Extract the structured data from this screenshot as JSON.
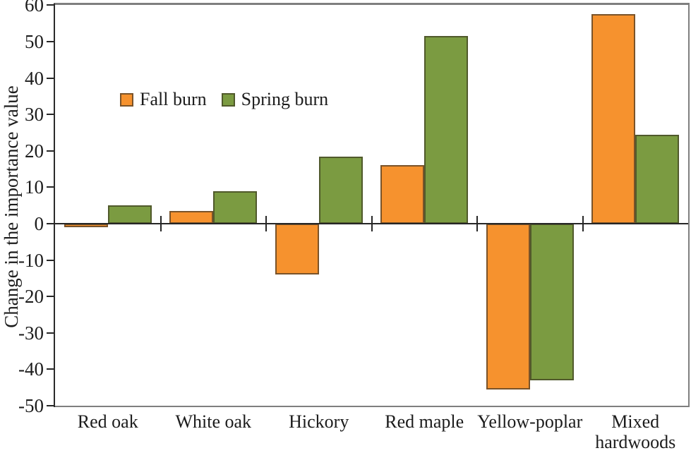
{
  "chart_data": {
    "type": "bar",
    "title": "",
    "xlabel": "",
    "ylabel": "Change in the importance value",
    "categories": [
      "Red oak",
      "White oak",
      "Hickory",
      "Red maple",
      "Yellow-poplar",
      "Mixed hardwoods"
    ],
    "series": [
      {
        "name": "Fall burn",
        "color": "#F6922E",
        "border_color": "#7A5329",
        "values": [
          -1,
          3.5,
          -14,
          16,
          -45.5,
          57.5
        ]
      },
      {
        "name": "Spring burn",
        "color": "#7B9B41",
        "border_color": "#50592B",
        "values": [
          5,
          9,
          18.5,
          51.5,
          -43,
          24.5
        ]
      }
    ],
    "ylim": [
      -50,
      60
    ],
    "ytick_step": 10,
    "yticks": [
      60,
      50,
      40,
      30,
      20,
      10,
      0,
      -10,
      -20,
      -30,
      -40,
      -50
    ],
    "grid": false,
    "legend_position": "inside-top-left",
    "axis_color": "#262626",
    "frame_color": "#7f7f7f"
  }
}
